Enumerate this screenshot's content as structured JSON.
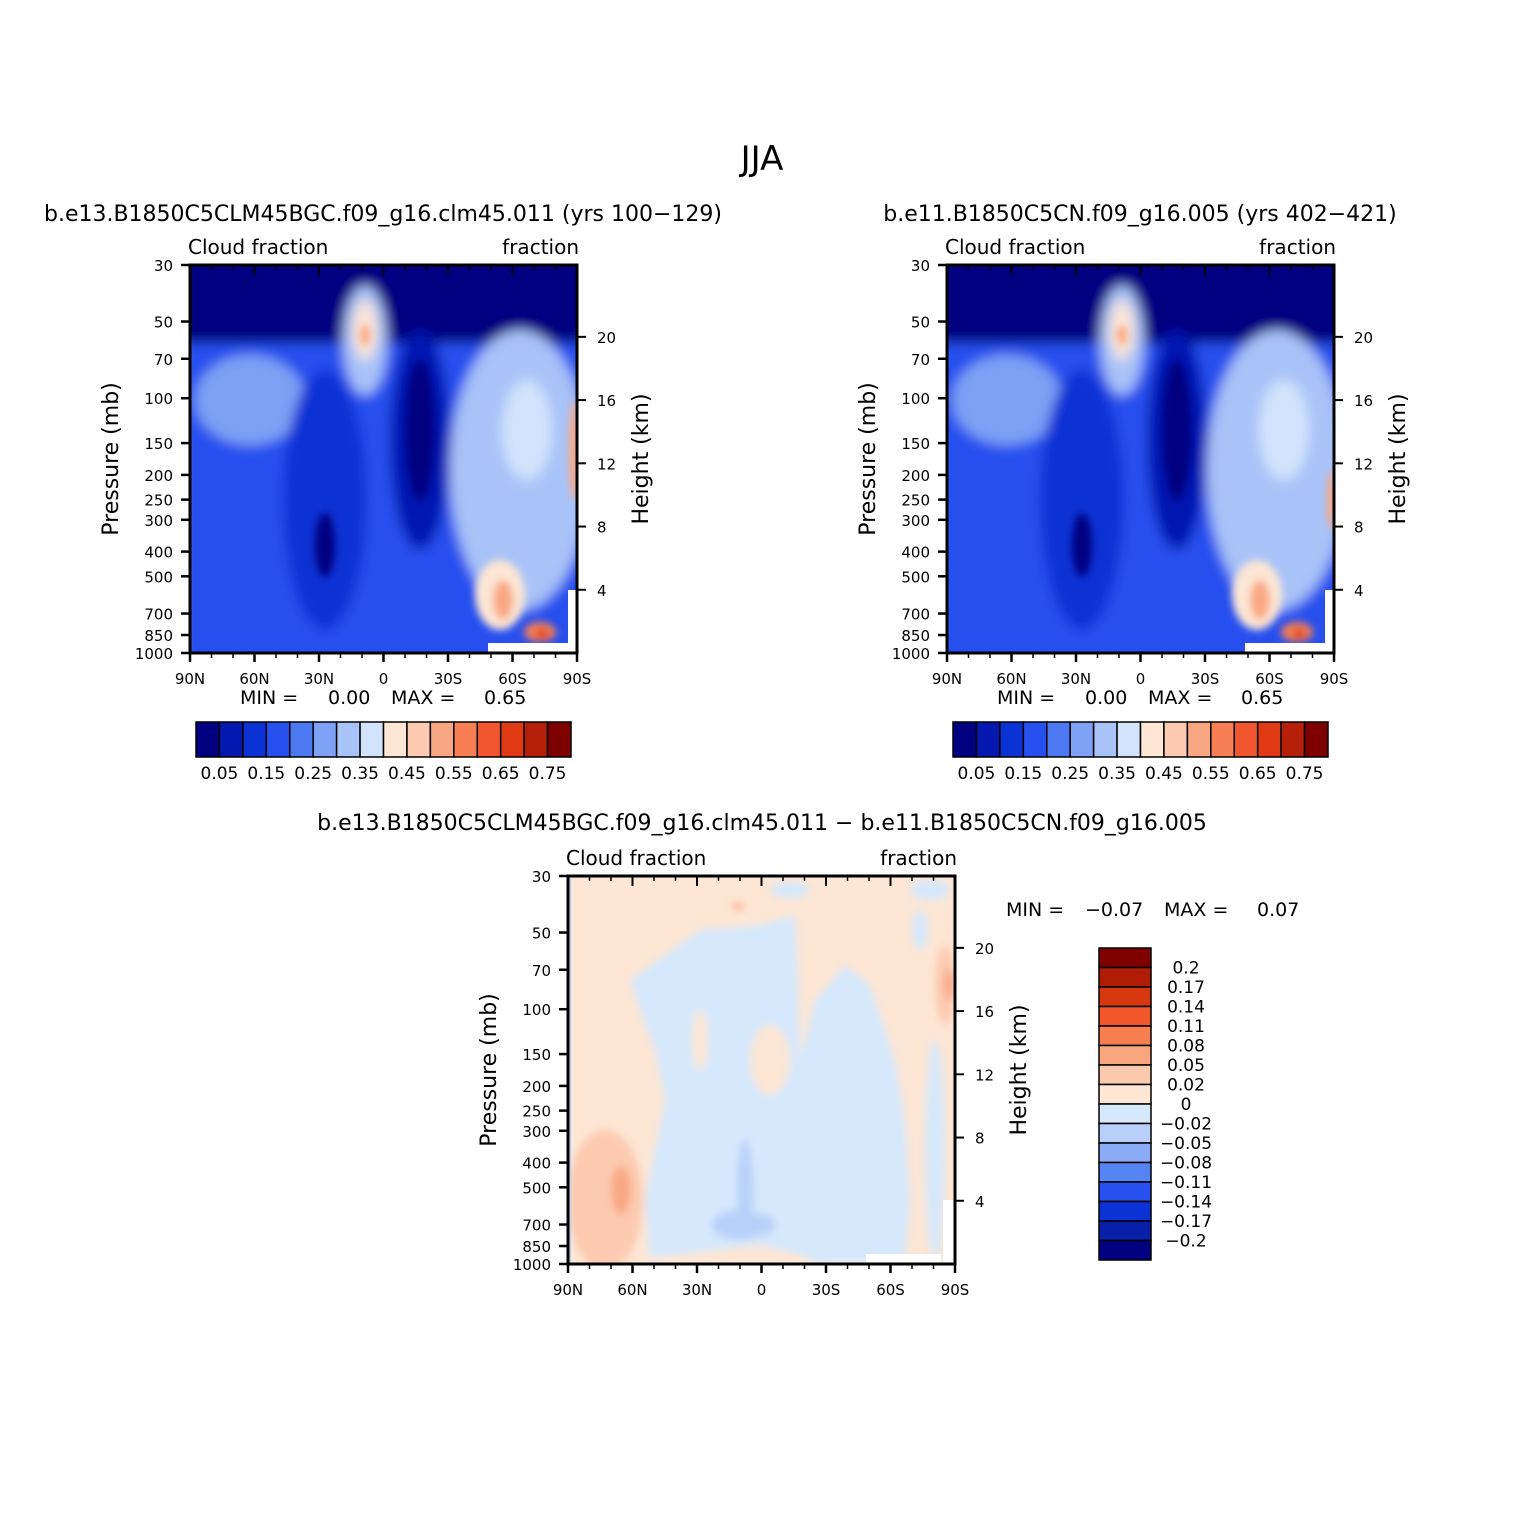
{
  "figure": {
    "title": "JJA"
  },
  "colors": {
    "fraction_scale": [
      "#000080",
      "#0519b0",
      "#0a32d4",
      "#2850ee",
      "#4c78f2",
      "#7ca1f5",
      "#a8c3f8",
      "#d2e4fb",
      "#fde6d4",
      "#fccab0",
      "#f9a783",
      "#f77e55",
      "#f2562e",
      "#df3a14",
      "#b61f0a",
      "#7f0000"
    ],
    "diff_scale": [
      "#000080",
      "#0a1fa8",
      "#0a32d4",
      "#2850ee",
      "#5585f3",
      "#8cadf6",
      "#b8d0f9",
      "#d6e8fc",
      "#fde6d4",
      "#fbcaae",
      "#f9a57e",
      "#f77e4f",
      "#f2562a",
      "#d8380f",
      "#b01c05",
      "#800000"
    ],
    "missing": "#ffffff",
    "frame": "#000000"
  },
  "chart_data": [
    {
      "type": "heatmap",
      "panel": "case1",
      "title": "b.e13.B1850C5CLM45BGC.f09_g16.clm45.011 (yrs 100−129)",
      "left_label": "Cloud fraction",
      "right_label": "fraction",
      "xlabel": "",
      "ylabel": "Pressure (mb)",
      "ylabel_right": "Height (km)",
      "x_ticks": [
        "90N",
        "60N",
        "30N",
        "0",
        "30S",
        "60S",
        "90S"
      ],
      "x_range": [
        90,
        -90
      ],
      "y_ticks": [
        30,
        50,
        70,
        100,
        150,
        200,
        250,
        300,
        400,
        500,
        700,
        850,
        1000
      ],
      "y_range": [
        30,
        1000
      ],
      "y_scale": "log",
      "height_ticks": [
        20,
        16,
        12,
        8,
        4
      ],
      "min_label": "MIN =",
      "min_value": "0.00",
      "max_label": "MAX =",
      "max_value": "0.65",
      "colorbar_orientation": "horizontal",
      "colorbar_labels": [
        "0.05",
        "0.15",
        "0.25",
        "0.35",
        "0.45",
        "0.55",
        "0.65",
        "0.75"
      ],
      "colorbar_levels": [
        0.05,
        0.1,
        0.15,
        0.2,
        0.25,
        0.3,
        0.35,
        0.4,
        0.45,
        0.5,
        0.55,
        0.6,
        0.65,
        0.7,
        0.75
      ]
    },
    {
      "type": "heatmap",
      "panel": "case2",
      "title": "b.e11.B1850C5CN.f09_g16.005 (yrs 402−421)",
      "left_label": "Cloud fraction",
      "right_label": "fraction",
      "xlabel": "",
      "ylabel": "Pressure (mb)",
      "ylabel_right": "Height (km)",
      "x_ticks": [
        "90N",
        "60N",
        "30N",
        "0",
        "30S",
        "60S",
        "90S"
      ],
      "x_range": [
        90,
        -90
      ],
      "y_ticks": [
        30,
        50,
        70,
        100,
        150,
        200,
        250,
        300,
        400,
        500,
        700,
        850,
        1000
      ],
      "y_range": [
        30,
        1000
      ],
      "y_scale": "log",
      "height_ticks": [
        20,
        16,
        12,
        8,
        4
      ],
      "min_label": "MIN =",
      "min_value": "0.00",
      "max_label": "MAX =",
      "max_value": "0.65",
      "colorbar_orientation": "horizontal",
      "colorbar_labels": [
        "0.05",
        "0.15",
        "0.25",
        "0.35",
        "0.45",
        "0.55",
        "0.65",
        "0.75"
      ],
      "colorbar_levels": [
        0.05,
        0.1,
        0.15,
        0.2,
        0.25,
        0.3,
        0.35,
        0.4,
        0.45,
        0.5,
        0.55,
        0.6,
        0.65,
        0.7,
        0.75
      ]
    },
    {
      "type": "heatmap",
      "panel": "difference",
      "title": "b.e13.B1850C5CLM45BGC.f09_g16.clm45.011 − b.e11.B1850C5CN.f09_g16.005",
      "left_label": "Cloud fraction",
      "right_label": "fraction",
      "xlabel": "",
      "ylabel": "Pressure (mb)",
      "ylabel_right": "Height (km)",
      "x_ticks": [
        "90N",
        "60N",
        "30N",
        "0",
        "30S",
        "60S",
        "90S"
      ],
      "x_range": [
        90,
        -90
      ],
      "y_ticks": [
        30,
        50,
        70,
        100,
        150,
        200,
        250,
        300,
        400,
        500,
        700,
        850,
        1000
      ],
      "y_range": [
        30,
        1000
      ],
      "y_scale": "log",
      "height_ticks": [
        20,
        16,
        12,
        8,
        4
      ],
      "min_label": "MIN =",
      "min_value": "−0.07",
      "max_label": "MAX =",
      "max_value": "0.07",
      "colorbar_orientation": "vertical",
      "colorbar_labels": [
        "0.2",
        "0.17",
        "0.14",
        "0.11",
        "0.08",
        "0.05",
        "0.02",
        "0",
        "−0.02",
        "−0.05",
        "−0.08",
        "−0.11",
        "−0.14",
        "−0.17",
        "−0.2"
      ],
      "colorbar_levels": [
        -0.2,
        -0.17,
        -0.14,
        -0.11,
        -0.08,
        -0.05,
        -0.02,
        0,
        0.02,
        0.05,
        0.08,
        0.11,
        0.14,
        0.17,
        0.2
      ]
    }
  ]
}
